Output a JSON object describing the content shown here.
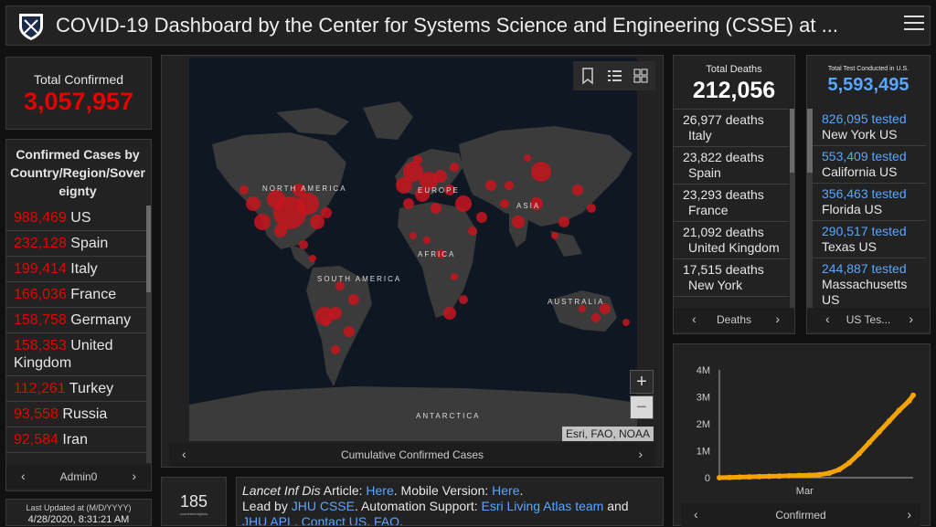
{
  "header": {
    "title": "COVID-19 Dashboard by the Center for Systems Science and Engineering (CSSE) at ..."
  },
  "total_confirmed": {
    "label": "Total Confirmed",
    "value": "3,057,957"
  },
  "confirmed_by_country": {
    "title": "Confirmed Cases by Country/Region/Sovereignty",
    "rows": [
      {
        "value": "988,469",
        "name": "US"
      },
      {
        "value": "232,128",
        "name": "Spain"
      },
      {
        "value": "199,414",
        "name": "Italy"
      },
      {
        "value": "166,036",
        "name": "France"
      },
      {
        "value": "158,758",
        "name": "Germany"
      },
      {
        "value": "158,353",
        "name": "United Kingdom"
      },
      {
        "value": "112,261",
        "name": "Turkey"
      },
      {
        "value": "93,558",
        "name": "Russia"
      },
      {
        "value": "92,584",
        "name": "Iran"
      }
    ],
    "pager_label": "Admin0"
  },
  "last_updated": {
    "label": "Last Updated at (M/D/YYYY)",
    "value": "4/28/2020, 8:31:21 AM"
  },
  "map": {
    "labels": [
      "NORTH AMERICA",
      "EUROPE",
      "ASIA",
      "AFRICA",
      "SOUTH AMERICA",
      "AUSTRALIA",
      "ANTARCTICA"
    ],
    "attribution": "Esri, FAO, NOAA",
    "zoom_in": "+",
    "zoom_out": "−",
    "pager_label": "Cumulative Confirmed Cases"
  },
  "countries_count": {
    "value": "185",
    "label": "countries/regions"
  },
  "info": {
    "t1": "Lancet Inf Dis",
    "t2": " Article: ",
    "l1": "Here",
    "t3": ". Mobile Version: ",
    "l2": "Here",
    "t4": ".",
    "t5": "Lead by ",
    "l3": "JHU CSSE",
    "t6": ". Automation Support: ",
    "l4": "Esri Living Atlas team",
    "t7": " and ",
    "l5": "JHU APL",
    "t8": ". ",
    "l6": "Contact US",
    "t9": ". ",
    "l7": "FAQ",
    "t10": "."
  },
  "total_deaths": {
    "label": "Total Deaths",
    "value": "212,056",
    "rows": [
      {
        "value": "26,977 deaths",
        "name": "Italy"
      },
      {
        "value": "23,822 deaths",
        "name": "Spain"
      },
      {
        "value": "23,293 deaths",
        "name": "France"
      },
      {
        "value": "21,092 deaths",
        "name": "United Kingdom"
      },
      {
        "value": "17,515 deaths",
        "name": "New York"
      }
    ],
    "pager_label": "Deaths"
  },
  "total_tests": {
    "label": "Total Test Conducted in U.S.",
    "value": "5,593,495",
    "rows": [
      {
        "value": "826,095 tested",
        "name": "New York US"
      },
      {
        "value": "553,409 tested",
        "name": "California US"
      },
      {
        "value": "356,463 tested",
        "name": "Florida US"
      },
      {
        "value": "290,517 tested",
        "name": "Texas US"
      },
      {
        "value": "244,887 tested",
        "name": "Massachusetts US"
      }
    ],
    "pager_label": "US Tes..."
  },
  "chart_data": {
    "type": "line",
    "series": [
      {
        "x": [
          0,
          5,
          10,
          15,
          20,
          25,
          30,
          35,
          40,
          45,
          50,
          55,
          60,
          65,
          70,
          75,
          80,
          85,
          90,
          95,
          97
        ],
        "values": [
          0.0,
          0.01,
          0.02,
          0.03,
          0.04,
          0.05,
          0.06,
          0.07,
          0.08,
          0.09,
          0.11,
          0.17,
          0.3,
          0.55,
          0.9,
          1.3,
          1.7,
          2.1,
          2.5,
          2.85,
          3.06
        ]
      }
    ],
    "x_tick_labels": [
      "Mar"
    ],
    "y_tick_labels": [
      "0",
      "1M",
      "2M",
      "3M",
      "4M"
    ],
    "ylim": [
      0,
      4
    ],
    "line_color": "#f4a300",
    "pager_label": "Confirmed"
  },
  "colors": {
    "accent_red": "#e60000",
    "link_blue": "#5aa6ff",
    "bubble_red": "#c8151e",
    "panel_bg": "#222222"
  }
}
